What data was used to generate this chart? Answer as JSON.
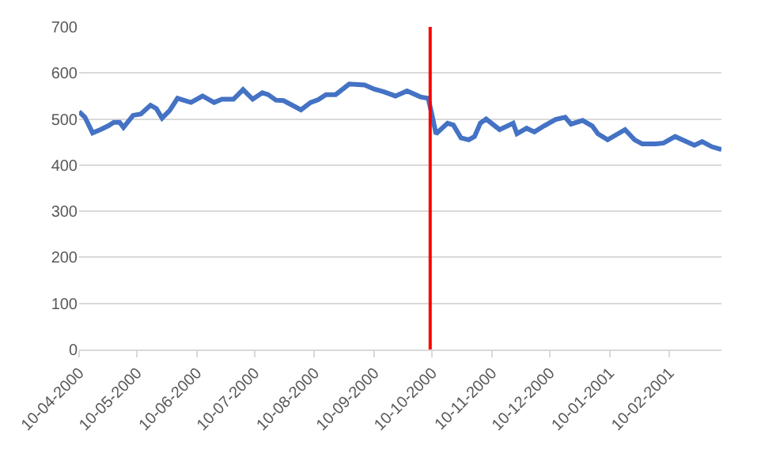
{
  "chart_data": {
    "type": "line",
    "x": [
      "2000-04-10",
      "2000-04-13",
      "2000-04-17",
      "2000-04-21",
      "2000-04-25",
      "2000-04-28",
      "2000-05-01",
      "2000-05-03",
      "2000-05-08",
      "2000-05-12",
      "2000-05-17",
      "2000-05-20",
      "2000-05-23",
      "2000-05-27",
      "2000-05-31",
      "2000-06-07",
      "2000-06-13",
      "2000-06-19",
      "2000-06-23",
      "2000-06-29",
      "2000-07-04",
      "2000-07-09",
      "2000-07-14",
      "2000-07-17",
      "2000-07-21",
      "2000-07-25",
      "2000-08-03",
      "2000-08-08",
      "2000-08-12",
      "2000-08-16",
      "2000-08-21",
      "2000-08-28",
      "2000-09-05",
      "2000-09-10",
      "2000-09-15",
      "2000-09-21",
      "2000-09-27",
      "2000-10-04",
      "2000-10-08",
      "2000-10-10",
      "2000-10-12",
      "2000-10-18",
      "2000-10-21",
      "2000-10-25",
      "2000-10-29",
      "2000-11-01",
      "2000-11-04",
      "2000-11-07",
      "2000-11-14",
      "2000-11-21",
      "2000-11-23",
      "2000-11-28",
      "2000-12-02",
      "2000-12-07",
      "2000-12-13",
      "2000-12-18",
      "2000-12-21",
      "2000-12-27",
      "2001-01-01",
      "2001-01-04",
      "2001-01-09",
      "2001-01-18",
      "2001-01-23",
      "2001-01-27",
      "2001-02-03",
      "2001-02-07",
      "2001-02-13",
      "2001-02-23",
      "2001-02-27",
      "2001-03-04",
      "2001-03-09"
    ],
    "series": [
      {
        "color": "#4472c4",
        "values": [
          516,
          504,
          470,
          477,
          485,
          493,
          493,
          482,
          508,
          511,
          530,
          523,
          502,
          519,
          545,
          536,
          550,
          536,
          543,
          543,
          564,
          543,
          557,
          553,
          541,
          540,
          520,
          536,
          542,
          553,
          553,
          576,
          574,
          565,
          559,
          550,
          561,
          548,
          545,
          508,
          468,
          491,
          487,
          459,
          455,
          462,
          491,
          500,
          477,
          491,
          468,
          480,
          472,
          485,
          499,
          504,
          489,
          497,
          485,
          468,
          455,
          477,
          455,
          446,
          446,
          448,
          462,
          443,
          451,
          440,
          434
        ]
      }
    ],
    "xlim": [
      "2000-04-10",
      "2001-03-09"
    ],
    "xticks": [
      {
        "value": "2000-04-10",
        "label": "10-04-2000"
      },
      {
        "value": "2000-05-10",
        "label": "10-05-2000"
      },
      {
        "value": "2000-06-10",
        "label": "10-06-2000"
      },
      {
        "value": "2000-07-10",
        "label": "10-07-2000"
      },
      {
        "value": "2000-08-10",
        "label": "10-08-2000"
      },
      {
        "value": "2000-09-10",
        "label": "10-09-2000"
      },
      {
        "value": "2000-10-10",
        "label": "10-10-2000"
      },
      {
        "value": "2000-11-10",
        "label": "10-11-2000"
      },
      {
        "value": "2000-12-10",
        "label": "10-12-2000"
      },
      {
        "value": "2001-01-10",
        "label": "10-01-2001"
      },
      {
        "value": "2001-02-10",
        "label": "10-02-2001"
      }
    ],
    "ylim": [
      0,
      700
    ],
    "yticks": [
      0,
      100,
      200,
      300,
      400,
      500,
      600,
      700
    ],
    "grid": "y",
    "legend": false,
    "marker": "none",
    "line_style": "solid",
    "ref_lines": [
      {
        "axis": "x",
        "value": "2000-10-09",
        "color": "#ff0000",
        "line_style": "solid"
      }
    ]
  }
}
